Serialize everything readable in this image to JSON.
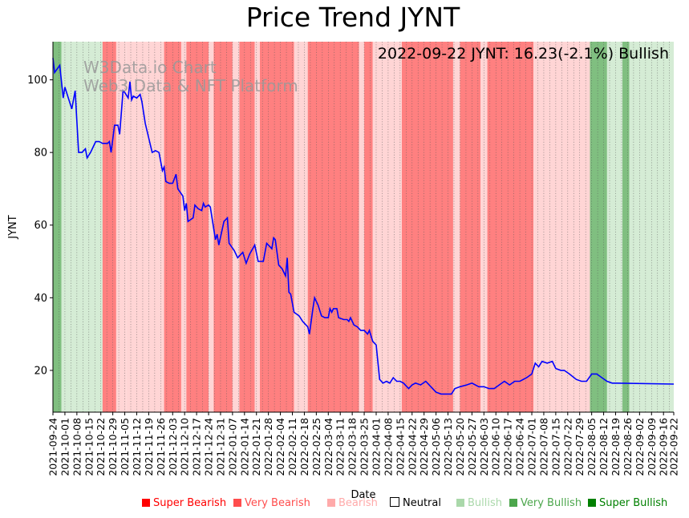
{
  "chart_data": {
    "type": "line",
    "title": "Price Trend JYNT",
    "xlabel": "Date",
    "ylabel": "JYNT",
    "ylim": [
      8.5,
      110.5
    ],
    "yticks": [
      20,
      40,
      60,
      80,
      100
    ],
    "x_start": "2021-09-24",
    "x_end": "2022-09-22",
    "xtick_labels": [
      "2021-09-24",
      "2021-10-01",
      "2021-10-08",
      "2021-10-15",
      "2021-10-22",
      "2021-10-29",
      "2021-11-05",
      "2021-11-12",
      "2021-11-19",
      "2021-11-26",
      "2021-12-03",
      "2021-12-10",
      "2021-12-17",
      "2021-12-24",
      "2021-12-31",
      "2022-01-07",
      "2022-01-14",
      "2022-01-21",
      "2022-01-28",
      "2022-02-04",
      "2022-02-11",
      "2022-02-18",
      "2022-02-25",
      "2022-03-04",
      "2022-03-11",
      "2022-03-18",
      "2022-03-25",
      "2022-04-01",
      "2022-04-08",
      "2022-04-15",
      "2022-04-22",
      "2022-04-29",
      "2022-05-06",
      "2022-05-13",
      "2022-05-20",
      "2022-05-27",
      "2022-06-03",
      "2022-06-10",
      "2022-06-17",
      "2022-06-24",
      "2022-07-01",
      "2022-07-08",
      "2022-07-15",
      "2022-07-22",
      "2022-07-29",
      "2022-08-05",
      "2022-08-12",
      "2022-08-19",
      "2022-08-26",
      "2022-09-02",
      "2022-09-09",
      "2022-09-16",
      "2022-09-22"
    ],
    "annotation": "2022-09-22 JYNT: 16.23(-2.1%) Bullish",
    "watermark_line1": "W3Data.io Chart",
    "watermark_line2": "Web3 Data & NFT Platform",
    "grid": "vertical dotted",
    "legend_position": "bottom-right",
    "sentiment_colors": {
      "super_bearish": "#ff0000",
      "very_bearish": "#ff4d4d",
      "bearish": "#ffaaaa",
      "neutral": "#ffffff",
      "bullish": "#aad8aa",
      "very_bullish": "#4ca64c",
      "super_bullish": "#008000"
    },
    "band_colors": {
      "very_bearish": "#ff8080",
      "bearish": "#ffd5d5",
      "bullish": "#d5ecd5",
      "very_bullish": "#80bf80"
    },
    "sentiment_bands": [
      {
        "start": "2021-09-24",
        "end": "2021-09-29",
        "level": "very_bullish"
      },
      {
        "start": "2021-09-29",
        "end": "2021-10-23",
        "level": "bullish"
      },
      {
        "start": "2021-10-23",
        "end": "2021-10-31",
        "level": "very_bearish"
      },
      {
        "start": "2021-10-31",
        "end": "2021-11-06",
        "level": "bearish"
      },
      {
        "start": "2021-11-06",
        "end": "2021-11-28",
        "level": "bearish"
      },
      {
        "start": "2021-11-28",
        "end": "2021-12-08",
        "level": "very_bearish"
      },
      {
        "start": "2021-12-08",
        "end": "2021-12-11",
        "level": "bearish"
      },
      {
        "start": "2021-12-11",
        "end": "2021-12-24",
        "level": "very_bearish"
      },
      {
        "start": "2021-12-24",
        "end": "2021-12-27",
        "level": "bearish"
      },
      {
        "start": "2021-12-27",
        "end": "2022-01-07",
        "level": "very_bearish"
      },
      {
        "start": "2022-01-07",
        "end": "2022-01-11",
        "level": "bearish"
      },
      {
        "start": "2022-01-11",
        "end": "2022-01-20",
        "level": "very_bearish"
      },
      {
        "start": "2022-01-20",
        "end": "2022-01-23",
        "level": "bearish"
      },
      {
        "start": "2022-01-23",
        "end": "2022-02-12",
        "level": "very_bearish"
      },
      {
        "start": "2022-02-12",
        "end": "2022-02-20",
        "level": "bearish"
      },
      {
        "start": "2022-02-20",
        "end": "2022-03-22",
        "level": "very_bearish"
      },
      {
        "start": "2022-03-22",
        "end": "2022-03-25",
        "level": "bearish"
      },
      {
        "start": "2022-03-25",
        "end": "2022-03-30",
        "level": "very_bearish"
      },
      {
        "start": "2022-03-30",
        "end": "2022-04-16",
        "level": "bearish"
      },
      {
        "start": "2022-04-16",
        "end": "2022-05-16",
        "level": "very_bearish"
      },
      {
        "start": "2022-05-16",
        "end": "2022-05-20",
        "level": "bearish"
      },
      {
        "start": "2022-05-20",
        "end": "2022-06-01",
        "level": "very_bearish"
      },
      {
        "start": "2022-06-01",
        "end": "2022-06-05",
        "level": "bearish"
      },
      {
        "start": "2022-06-05",
        "end": "2022-07-02",
        "level": "very_bearish"
      },
      {
        "start": "2022-07-02",
        "end": "2022-08-04",
        "level": "bearish"
      },
      {
        "start": "2022-08-04",
        "end": "2022-08-14",
        "level": "very_bullish"
      },
      {
        "start": "2022-08-14",
        "end": "2022-08-23",
        "level": "bullish"
      },
      {
        "start": "2022-08-23",
        "end": "2022-08-27",
        "level": "very_bullish"
      },
      {
        "start": "2022-08-27",
        "end": "2022-09-22",
        "level": "bullish"
      }
    ],
    "series": [
      {
        "name": "JYNT",
        "color": "#0000ff",
        "points": [
          [
            "2021-09-24",
            106
          ],
          [
            "2021-09-25",
            102
          ],
          [
            "2021-09-28",
            104
          ],
          [
            "2021-09-30",
            95
          ],
          [
            "2021-10-01",
            98
          ],
          [
            "2021-10-03",
            95
          ],
          [
            "2021-10-05",
            92
          ],
          [
            "2021-10-07",
            97
          ],
          [
            "2021-10-09",
            80
          ],
          [
            "2021-10-11",
            80
          ],
          [
            "2021-10-13",
            81
          ],
          [
            "2021-10-14",
            78.5
          ],
          [
            "2021-10-16",
            80
          ],
          [
            "2021-10-19",
            83
          ],
          [
            "2021-10-21",
            83
          ],
          [
            "2021-10-23",
            82.5
          ],
          [
            "2021-10-26",
            82.5
          ],
          [
            "2021-10-27",
            83
          ],
          [
            "2021-10-28",
            80
          ],
          [
            "2021-10-30",
            87.5
          ],
          [
            "2021-11-01",
            87.5
          ],
          [
            "2021-11-02",
            85
          ],
          [
            "2021-11-04",
            97
          ],
          [
            "2021-11-05",
            96.5
          ],
          [
            "2021-11-07",
            95
          ],
          [
            "2021-11-08",
            99.5
          ],
          [
            "2021-11-09",
            94.5
          ],
          [
            "2021-11-10",
            95.5
          ],
          [
            "2021-11-12",
            95
          ],
          [
            "2021-11-14",
            96
          ],
          [
            "2021-11-15",
            94
          ],
          [
            "2021-11-17",
            88
          ],
          [
            "2021-11-19",
            84
          ],
          [
            "2021-11-21",
            80
          ],
          [
            "2021-11-23",
            80.5
          ],
          [
            "2021-11-25",
            80
          ],
          [
            "2021-11-27",
            75
          ],
          [
            "2021-11-28",
            76
          ],
          [
            "2021-11-29",
            72
          ],
          [
            "2021-12-01",
            71.5
          ],
          [
            "2021-12-03",
            71.5
          ],
          [
            "2021-12-05",
            74
          ],
          [
            "2021-12-06",
            70
          ],
          [
            "2021-12-09",
            68
          ],
          [
            "2021-12-10",
            64
          ],
          [
            "2021-12-11",
            66
          ],
          [
            "2021-12-12",
            61
          ],
          [
            "2021-12-15",
            62
          ],
          [
            "2021-12-16",
            65.5
          ],
          [
            "2021-12-18",
            64.5
          ],
          [
            "2021-12-20",
            64
          ],
          [
            "2021-12-21",
            66
          ],
          [
            "2021-12-22",
            65
          ],
          [
            "2021-12-24",
            65.5
          ],
          [
            "2021-12-25",
            65
          ],
          [
            "2021-12-28",
            56
          ],
          [
            "2021-12-29",
            57.5
          ],
          [
            "2021-12-30",
            54.5
          ],
          [
            "2022-01-02",
            61
          ],
          [
            "2022-01-04",
            62
          ],
          [
            "2022-01-05",
            55
          ],
          [
            "2022-01-08",
            53
          ],
          [
            "2022-01-10",
            51
          ],
          [
            "2022-01-11",
            51.5
          ],
          [
            "2022-01-13",
            52.5
          ],
          [
            "2022-01-15",
            49.5
          ],
          [
            "2022-01-17",
            52
          ],
          [
            "2022-01-20",
            54.5
          ],
          [
            "2022-01-22",
            50
          ],
          [
            "2022-01-25",
            50
          ],
          [
            "2022-01-27",
            55
          ],
          [
            "2022-01-29",
            54
          ],
          [
            "2022-01-30",
            53.5
          ],
          [
            "2022-01-31",
            56.5
          ],
          [
            "2022-02-01",
            56
          ],
          [
            "2022-02-03",
            49
          ],
          [
            "2022-02-05",
            48
          ],
          [
            "2022-02-07",
            46
          ],
          [
            "2022-02-08",
            51
          ],
          [
            "2022-02-09",
            41.5
          ],
          [
            "2022-02-10",
            41
          ],
          [
            "2022-02-12",
            36
          ],
          [
            "2022-02-15",
            35
          ],
          [
            "2022-02-17",
            33.5
          ],
          [
            "2022-02-20",
            32
          ],
          [
            "2022-02-21",
            30
          ],
          [
            "2022-02-23",
            37
          ],
          [
            "2022-02-24",
            40
          ],
          [
            "2022-02-26",
            38
          ],
          [
            "2022-02-28",
            35
          ],
          [
            "2022-03-02",
            34.5
          ],
          [
            "2022-03-04",
            34.5
          ],
          [
            "2022-03-05",
            37
          ],
          [
            "2022-03-06",
            36
          ],
          [
            "2022-03-07",
            37
          ],
          [
            "2022-03-09",
            37
          ],
          [
            "2022-03-10",
            34.5
          ],
          [
            "2022-03-13",
            34
          ],
          [
            "2022-03-15",
            34
          ],
          [
            "2022-03-16",
            33.5
          ],
          [
            "2022-03-17",
            34.5
          ],
          [
            "2022-03-19",
            32.5
          ],
          [
            "2022-03-21",
            32
          ],
          [
            "2022-03-23",
            31
          ],
          [
            "2022-03-25",
            31
          ],
          [
            "2022-03-27",
            30
          ],
          [
            "2022-03-28",
            31
          ],
          [
            "2022-03-30",
            28
          ],
          [
            "2022-04-01",
            27
          ],
          [
            "2022-04-03",
            17.5
          ],
          [
            "2022-04-05",
            16.5
          ],
          [
            "2022-04-07",
            17
          ],
          [
            "2022-04-09",
            16.5
          ],
          [
            "2022-04-11",
            18
          ],
          [
            "2022-04-13",
            17
          ],
          [
            "2022-04-15",
            17
          ],
          [
            "2022-04-17",
            16.5
          ],
          [
            "2022-04-20",
            15
          ],
          [
            "2022-04-22",
            16
          ],
          [
            "2022-04-24",
            16.5
          ],
          [
            "2022-04-27",
            16
          ],
          [
            "2022-04-30",
            17
          ],
          [
            "2022-05-03",
            15.5
          ],
          [
            "2022-05-06",
            14
          ],
          [
            "2022-05-09",
            13.5
          ],
          [
            "2022-05-12",
            13.5
          ],
          [
            "2022-05-15",
            13.5
          ],
          [
            "2022-05-17",
            15
          ],
          [
            "2022-05-20",
            15.5
          ],
          [
            "2022-05-24",
            16
          ],
          [
            "2022-05-27",
            16.5
          ],
          [
            "2022-05-31",
            15.5
          ],
          [
            "2022-06-03",
            15.5
          ],
          [
            "2022-06-06",
            15
          ],
          [
            "2022-06-09",
            15
          ],
          [
            "2022-06-12",
            16
          ],
          [
            "2022-06-15",
            17
          ],
          [
            "2022-06-18",
            16
          ],
          [
            "2022-06-21",
            17
          ],
          [
            "2022-06-24",
            17
          ],
          [
            "2022-06-28",
            18
          ],
          [
            "2022-07-01",
            19
          ],
          [
            "2022-07-03",
            22
          ],
          [
            "2022-07-05",
            21
          ],
          [
            "2022-07-07",
            22.5
          ],
          [
            "2022-07-10",
            22
          ],
          [
            "2022-07-13",
            22.5
          ],
          [
            "2022-07-15",
            20.5
          ],
          [
            "2022-07-18",
            20
          ],
          [
            "2022-07-20",
            20
          ],
          [
            "2022-07-23",
            19
          ],
          [
            "2022-07-27",
            17.5
          ],
          [
            "2022-07-30",
            17
          ],
          [
            "2022-08-02",
            17
          ],
          [
            "2022-08-05",
            19
          ],
          [
            "2022-08-08",
            19
          ],
          [
            "2022-08-11",
            18
          ],
          [
            "2022-08-14",
            17
          ],
          [
            "2022-08-17",
            16.5
          ],
          [
            "2022-08-20",
            16.5
          ],
          [
            "2022-09-22",
            16.23
          ]
        ]
      }
    ],
    "legend": [
      {
        "key": "super_bearish",
        "label": "Super Bearish",
        "color": "#ff0000"
      },
      {
        "key": "very_bearish",
        "label": "Very Bearish",
        "color": "#ff4d4d"
      },
      {
        "key": "bearish",
        "label": "Bearish",
        "color": "#ffaaaa"
      },
      {
        "key": "neutral",
        "label": "Neutral",
        "color": "#ffffff"
      },
      {
        "key": "bullish",
        "label": "Bullish",
        "color": "#aad8aa"
      },
      {
        "key": "very_bullish",
        "label": "Very Bullish",
        "color": "#4ca64c"
      },
      {
        "key": "super_bullish",
        "label": "Super Bullish",
        "color": "#008000"
      }
    ]
  }
}
